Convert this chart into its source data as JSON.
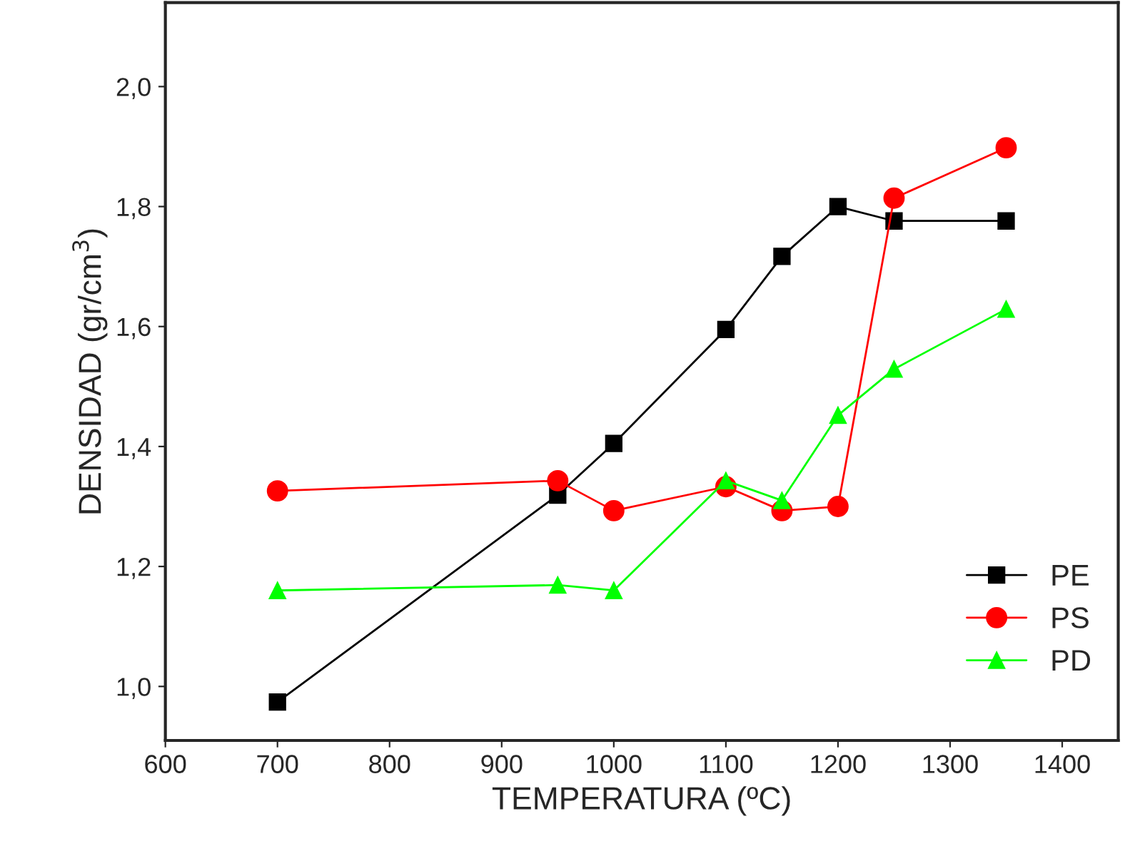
{
  "chart_data": {
    "type": "line",
    "xlabel": "TEMPERATURA (ºC)",
    "ylabel": "DENSIDAD (gr/cm$^{3}$)",
    "x": [
      700,
      950,
      1000,
      1100,
      1150,
      1200,
      1250,
      1350
    ],
    "series": [
      {
        "name": "PE",
        "color": "#000000",
        "marker": "square",
        "values": [
          0.974,
          1.319,
          1.405,
          1.595,
          1.717,
          1.8,
          1.776,
          1.776
        ]
      },
      {
        "name": "PS",
        "color": "#ff0000",
        "marker": "circle",
        "values": [
          1.326,
          1.343,
          1.293,
          1.333,
          1.293,
          1.3,
          1.814,
          1.898
        ]
      },
      {
        "name": "PD",
        "color": "#00ff00",
        "marker": "triangle",
        "values": [
          1.16,
          1.169,
          1.16,
          1.343,
          1.31,
          1.452,
          1.529,
          1.629
        ]
      }
    ],
    "xlim": [
      600,
      1450
    ],
    "xticks": [
      600,
      700,
      800,
      900,
      1000,
      1100,
      1200,
      1300,
      1400
    ],
    "ylim": [
      0.91,
      2.14
    ],
    "yticks": [
      {
        "value": 1.0,
        "label": "1,0"
      },
      {
        "value": 1.2,
        "label": "1,2"
      },
      {
        "value": 1.4,
        "label": "1,4"
      },
      {
        "value": 1.6,
        "label": "1,6"
      },
      {
        "value": 1.8,
        "label": "1,8"
      },
      {
        "value": 2.0,
        "label": "2,0"
      }
    ],
    "grid": false,
    "legend": "bottom right",
    "line_style": "solid"
  }
}
